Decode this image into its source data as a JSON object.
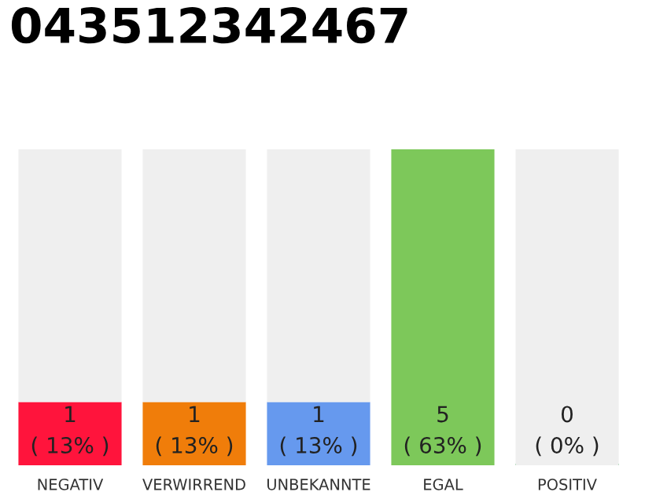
{
  "chart_data": {
    "type": "bar",
    "title": "043512342467",
    "stacked": true,
    "categories": [
      "NEGATIV",
      "VERWIRREND",
      "UNBEKANNTE",
      "EGAL",
      "POSITIV"
    ],
    "ylim": [
      0,
      5
    ],
    "tick_labels": "x",
    "grid": false,
    "series": [
      {
        "colors": [
          "#ff143c",
          "#f07d0a",
          "#6699ee",
          "#7dc85a",
          "#2aa84a"
        ],
        "values": [
          1,
          1,
          1,
          5,
          0
        ],
        "value_labels": [
          "1\n( 13% )",
          "1\n( 13% )",
          "1\n( 13% )",
          "5\n( 63% )",
          "0\n( 0% )"
        ]
      },
      {
        "color": "#efefef",
        "values": [
          4,
          4,
          4,
          0,
          5
        ]
      }
    ]
  }
}
